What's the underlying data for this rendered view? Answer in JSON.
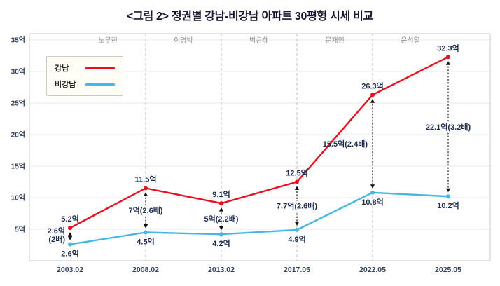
{
  "chart_data": {
    "type": "line",
    "title": "<그림 2> 정권별 강남-비강남 아파트 30평형 시세 비교",
    "x_labels": [
      "2003.02",
      "2008.02",
      "2013.02",
      "2017.05",
      "2022.05",
      "2025.05"
    ],
    "y_ticks": [
      "5억",
      "10억",
      "15억",
      "20억",
      "25억",
      "30억",
      "35억"
    ],
    "y_tick_values": [
      5,
      10,
      15,
      20,
      25,
      30,
      35
    ],
    "ylim": [
      0,
      36
    ],
    "unit": "억",
    "grid": true,
    "legend_position": "upper-left",
    "president_labels": [
      "노무현",
      "이명박",
      "박근혜",
      "문재인",
      "윤석열"
    ],
    "series": [
      {
        "name": "강남",
        "color": "#e8101e",
        "values": [
          5.2,
          11.5,
          9.1,
          12.5,
          26.3,
          32.3
        ],
        "point_labels": [
          "5.2억",
          "11.5억",
          "9.1억",
          "12.5억",
          "26.3억",
          "32.3억"
        ]
      },
      {
        "name": "비강남",
        "color": "#45b7e6",
        "values": [
          2.6,
          4.5,
          4.2,
          4.9,
          10.8,
          10.2
        ],
        "point_labels": [
          "2.6억",
          "4.5억",
          "4.2억",
          "4.9억",
          "10.8억",
          "10.2억"
        ]
      }
    ],
    "gap_labels": [
      "2.6억\n(2배)",
      "7억(2.6배)",
      "5억(2.2배)",
      "7.7억(2.6배)",
      "15.5억(2.4배)",
      "22.1억(3.2배)"
    ]
  }
}
